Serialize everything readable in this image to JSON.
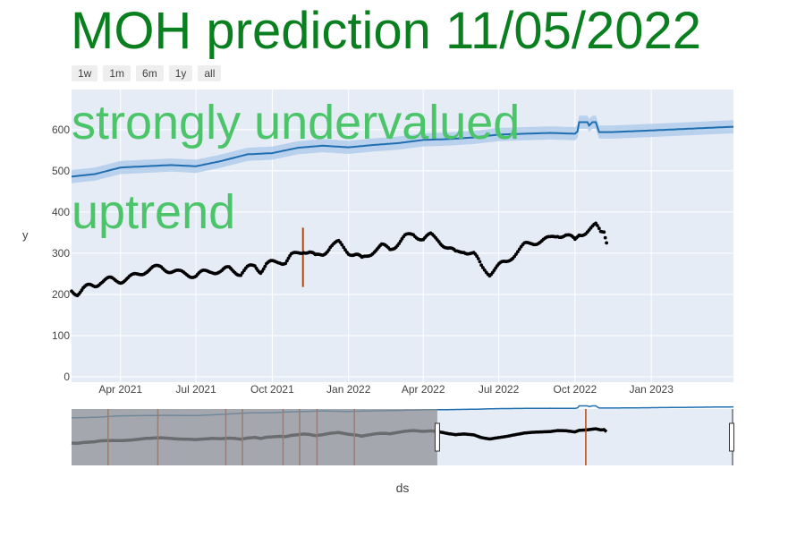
{
  "title": "MOH prediction 11/05/2022",
  "colors": {
    "title": "#0a7f1f",
    "annotation": "#4cc46a",
    "plot_bg": "#e5ecf6",
    "grid": "#ffffff",
    "forecast": "#1f6fb0",
    "band": "#aac8ea",
    "actual": "#000000",
    "changepoint": "#b5470f",
    "slider_shade": "#8e9094"
  },
  "range_selector": {
    "buttons": [
      "1w",
      "1m",
      "6m",
      "1y",
      "all"
    ]
  },
  "annotations": [
    "strongly undervalued",
    "uptrend"
  ],
  "chart_data": {
    "type": "line",
    "xlabel": "ds",
    "ylabel": "y",
    "xlim": [
      "2021-02-01",
      "2023-04-10"
    ],
    "ylim": [
      0,
      680
    ],
    "yticks": [
      0,
      100,
      200,
      300,
      400,
      500,
      600
    ],
    "xticks": [
      {
        "date": "2021-04-01",
        "label": "Apr 2021"
      },
      {
        "date": "2021-07-01",
        "label": "Jul 2021"
      },
      {
        "date": "2021-10-01",
        "label": "Oct 2021"
      },
      {
        "date": "2022-01-01",
        "label": "Jan 2022"
      },
      {
        "date": "2022-04-01",
        "label": "Apr 2022"
      },
      {
        "date": "2022-07-01",
        "label": "Jul 2022"
      },
      {
        "date": "2022-10-01",
        "label": "Oct 2022"
      },
      {
        "date": "2023-01-01",
        "label": "Jan 2023"
      }
    ],
    "series": [
      {
        "kind": "forecast",
        "points": [
          [
            "2021-02-01",
            486
          ],
          [
            "2021-03-01",
            492
          ],
          [
            "2021-04-01",
            508
          ],
          [
            "2021-05-01",
            511
          ],
          [
            "2021-06-01",
            514
          ],
          [
            "2021-07-01",
            511
          ],
          [
            "2021-08-01",
            524
          ],
          [
            "2021-09-01",
            540
          ],
          [
            "2021-10-01",
            543
          ],
          [
            "2021-11-01",
            556
          ],
          [
            "2021-12-01",
            561
          ],
          [
            "2022-01-01",
            557
          ],
          [
            "2022-02-01",
            563
          ],
          [
            "2022-03-01",
            567
          ],
          [
            "2022-04-01",
            575
          ],
          [
            "2022-05-01",
            577
          ],
          [
            "2022-06-01",
            581
          ],
          [
            "2022-07-01",
            588
          ],
          [
            "2022-08-01",
            590
          ],
          [
            "2022-09-01",
            592
          ],
          [
            "2022-10-01",
            590
          ],
          [
            "2022-10-04",
            596
          ],
          [
            "2022-10-06",
            618
          ],
          [
            "2022-10-16",
            618
          ],
          [
            "2022-10-18",
            610
          ],
          [
            "2022-10-22",
            618
          ],
          [
            "2022-10-26",
            618
          ],
          [
            "2022-10-30",
            594
          ],
          [
            "2022-11-15",
            594
          ],
          [
            "2023-01-01",
            598
          ],
          [
            "2023-04-10",
            607
          ]
        ],
        "band": 16
      },
      {
        "kind": "actual",
        "points": [
          [
            "2021-02-01",
            208
          ],
          [
            "2021-02-08",
            204
          ],
          [
            "2021-02-15",
            214
          ],
          [
            "2021-02-22",
            218
          ],
          [
            "2021-03-01",
            222
          ],
          [
            "2021-03-08",
            232
          ],
          [
            "2021-03-15",
            234
          ],
          [
            "2021-03-22",
            236
          ],
          [
            "2021-04-01",
            234
          ],
          [
            "2021-04-10",
            238
          ],
          [
            "2021-04-20",
            246
          ],
          [
            "2021-05-01",
            258
          ],
          [
            "2021-05-10",
            262
          ],
          [
            "2021-05-20",
            266
          ],
          [
            "2021-06-01",
            258
          ],
          [
            "2021-06-10",
            252
          ],
          [
            "2021-06-20",
            250
          ],
          [
            "2021-07-01",
            246
          ],
          [
            "2021-07-10",
            252
          ],
          [
            "2021-07-20",
            258
          ],
          [
            "2021-08-01",
            256
          ],
          [
            "2021-08-10",
            262
          ],
          [
            "2021-08-17",
            258
          ],
          [
            "2021-08-24",
            250
          ],
          [
            "2021-09-01",
            262
          ],
          [
            "2021-09-10",
            270
          ],
          [
            "2021-09-17",
            258
          ],
          [
            "2021-09-24",
            272
          ],
          [
            "2021-10-01",
            276
          ],
          [
            "2021-10-10",
            282
          ],
          [
            "2021-10-17",
            278
          ],
          [
            "2021-10-24",
            292
          ],
          [
            "2021-11-01",
            300
          ],
          [
            "2021-11-08",
            308
          ],
          [
            "2021-11-15",
            302
          ],
          [
            "2021-11-22",
            290
          ],
          [
            "2021-12-01",
            300
          ],
          [
            "2021-12-10",
            316
          ],
          [
            "2021-12-20",
            324
          ],
          [
            "2022-01-01",
            304
          ],
          [
            "2022-01-10",
            296
          ],
          [
            "2022-01-17",
            284
          ],
          [
            "2022-01-24",
            296
          ],
          [
            "2022-02-01",
            308
          ],
          [
            "2022-02-10",
            316
          ],
          [
            "2022-02-20",
            310
          ],
          [
            "2022-03-01",
            324
          ],
          [
            "2022-03-10",
            338
          ],
          [
            "2022-03-20",
            346
          ],
          [
            "2022-04-01",
            336
          ],
          [
            "2022-04-10",
            342
          ],
          [
            "2022-04-20",
            332
          ],
          [
            "2022-05-01",
            312
          ],
          [
            "2022-05-10",
            300
          ],
          [
            "2022-05-20",
            308
          ],
          [
            "2022-06-01",
            298
          ],
          [
            "2022-06-10",
            268
          ],
          [
            "2022-06-20",
            252
          ],
          [
            "2022-07-01",
            268
          ],
          [
            "2022-07-10",
            280
          ],
          [
            "2022-07-20",
            298
          ],
          [
            "2022-08-01",
            318
          ],
          [
            "2022-08-10",
            326
          ],
          [
            "2022-08-20",
            330
          ],
          [
            "2022-09-01",
            334
          ],
          [
            "2022-09-10",
            346
          ],
          [
            "2022-09-20",
            344
          ],
          [
            "2022-10-01",
            330
          ],
          [
            "2022-10-06",
            348
          ],
          [
            "2022-10-14",
            352
          ],
          [
            "2022-10-20",
            358
          ],
          [
            "2022-10-26",
            366
          ],
          [
            "2022-11-01",
            352
          ],
          [
            "2022-11-05",
            356
          ],
          [
            "2022-11-08",
            332
          ]
        ]
      }
    ],
    "changepoints": [
      "2021-03-17",
      "2021-05-16",
      "2021-08-06",
      "2021-08-26",
      "2021-10-14",
      "2021-11-03",
      "2021-11-24",
      "2022-01-08",
      "2022-10-14"
    ],
    "main_changepoint": {
      "date": "2021-11-07",
      "y_low": 218,
      "y_high": 362
    },
    "range_slider": {
      "visible_start": "2022-04-18",
      "visible_end": "2023-04-10"
    }
  }
}
